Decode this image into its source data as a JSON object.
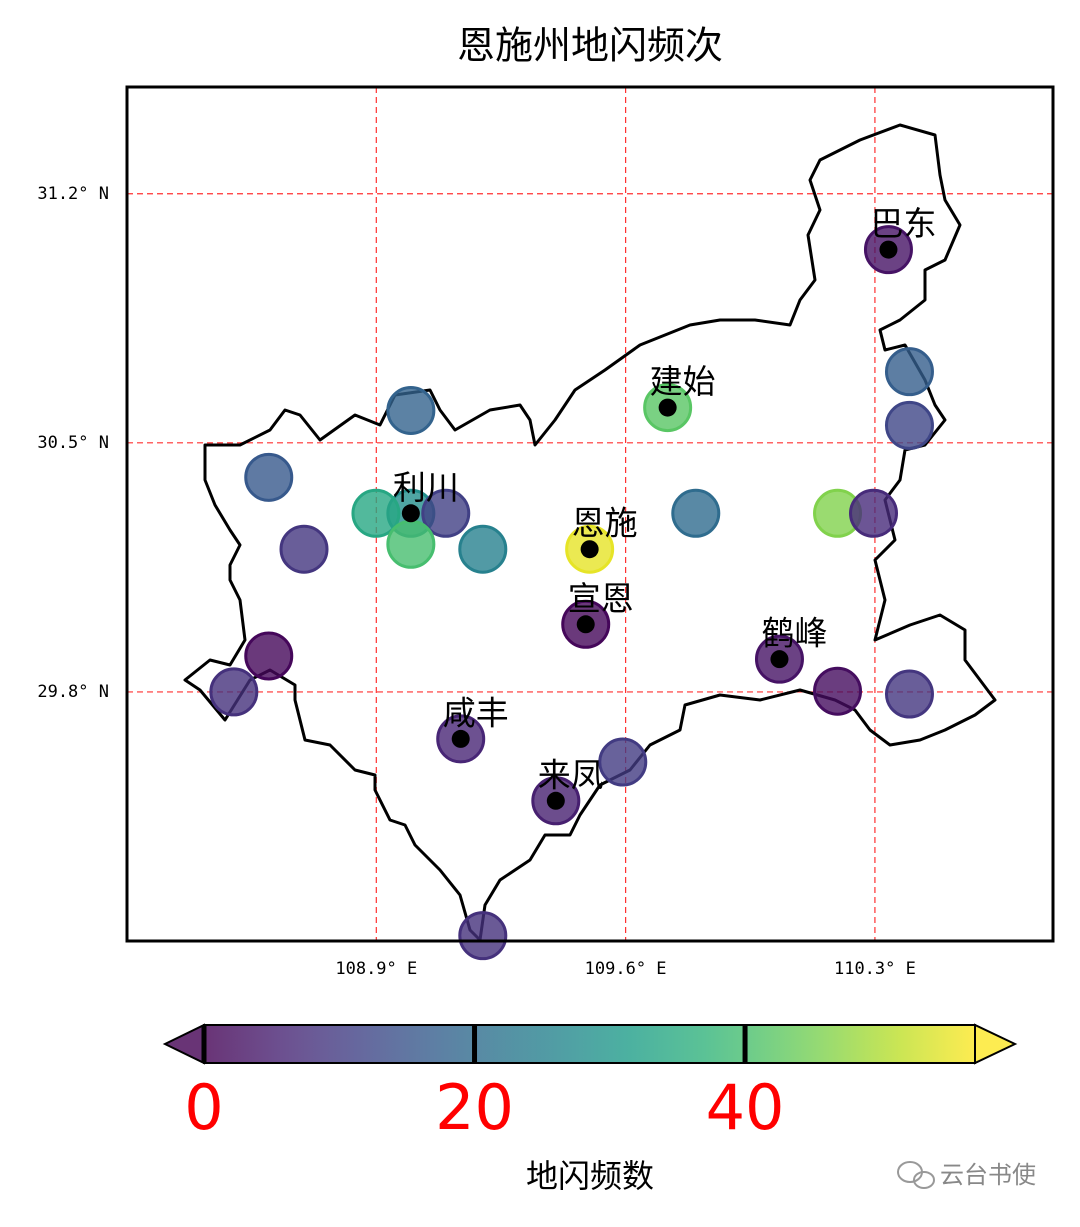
{
  "chart_data": {
    "type": "scatter",
    "title": "恩施州地闪频次",
    "xlim": [
      108.2,
      110.8
    ],
    "ylim": [
      29.1,
      31.5
    ],
    "xticks": [
      {
        "value": 108.9,
        "label": "108.9° E"
      },
      {
        "value": 109.6,
        "label": "109.6° E"
      },
      {
        "value": 110.3,
        "label": "110.3° E"
      }
    ],
    "yticks": [
      {
        "value": 29.8,
        "label": "29.8° N"
      },
      {
        "value": 30.5,
        "label": "30.5° N"
      },
      {
        "value": 31.2,
        "label": "31.2° N"
      }
    ],
    "grid": true,
    "grid_color": "#ff3030",
    "colormap": "viridis",
    "series": [
      {
        "lon": [
          110.338,
          110.397,
          110.397,
          109.718,
          108.997,
          108.598,
          108.997,
          108.899,
          109.095,
          108.997,
          109.199,
          108.697,
          109.499,
          109.797,
          110.195,
          110.296,
          109.488,
          110.032,
          108.598,
          108.5,
          110.195,
          110.397,
          109.137,
          109.592,
          109.404,
          109.199
        ],
        "lat": [
          31.043,
          30.7,
          30.549,
          30.599,
          30.591,
          30.403,
          30.302,
          30.302,
          30.302,
          30.215,
          30.201,
          30.201,
          30.201,
          30.302,
          30.302,
          30.302,
          29.99,
          29.892,
          29.901,
          29.8,
          29.802,
          29.794,
          29.668,
          29.603,
          29.494,
          29.115
        ],
        "values": [
          3,
          17,
          12,
          42,
          18,
          16,
          28,
          34,
          11,
          40,
          25,
          9,
          55,
          20,
          46,
          7,
          1,
          3,
          1,
          8,
          2,
          9,
          6,
          10,
          5,
          8
        ]
      }
    ],
    "stations": {
      "names": [
        "巴东",
        "建始",
        "利川",
        "恩施",
        "宣恩",
        "鹤峰",
        "咸丰",
        "来凤"
      ],
      "lon": [
        110.338,
        109.718,
        108.997,
        109.499,
        109.488,
        110.032,
        109.137,
        109.404
      ],
      "lat": [
        31.043,
        30.599,
        30.302,
        30.201,
        29.99,
        29.892,
        29.668,
        29.494
      ]
    },
    "colorbar": {
      "clim": [
        0,
        57
      ],
      "ticks": [
        0,
        20,
        40
      ],
      "label": "地闪频数",
      "tick_color": "#ff0000"
    },
    "watermark": "云台书使"
  }
}
